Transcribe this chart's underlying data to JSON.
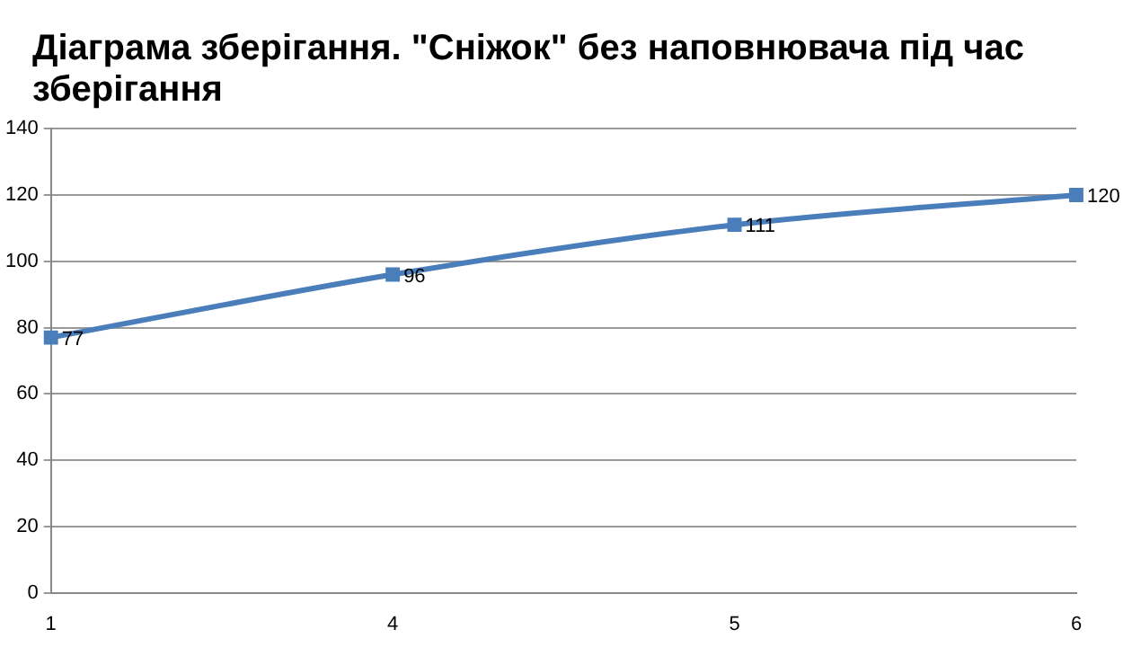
{
  "chart_data": {
    "type": "line",
    "title": "Діаграма зберігання. \"Сніжок\" без наповнювача під час зберігання",
    "categories": [
      "1",
      "4",
      "5",
      "6"
    ],
    "series": [
      {
        "color": "#4a7ebb",
        "values": [
          77,
          96,
          111,
          120
        ]
      }
    ],
    "ylim": [
      0,
      140
    ],
    "yticks": [
      0,
      20,
      40,
      60,
      80,
      100,
      120,
      140
    ],
    "grid": "y",
    "marker": "square",
    "line_style": "solid",
    "data_labels": true,
    "legend": false
  }
}
